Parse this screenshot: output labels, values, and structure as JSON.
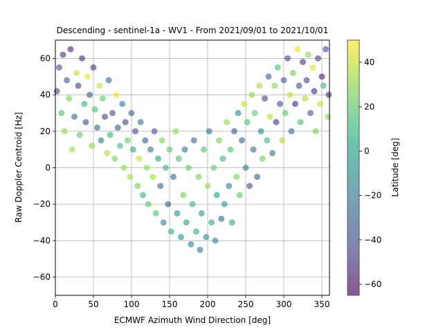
{
  "chart_data": {
    "type": "scatter",
    "title": "Descending - sentinel-1a - WV1 - From 2021/09/01 to 2021/10/01",
    "xlabel": "ECMWF Azimuth Wind Direction [deg]",
    "ylabel": "Raw Doppler Centroid [Hz]",
    "xlim": [
      0,
      360
    ],
    "ylim": [
      -70,
      70
    ],
    "xticks": [
      0,
      50,
      100,
      150,
      200,
      250,
      300,
      350
    ],
    "yticks": [
      -60,
      -40,
      -20,
      0,
      20,
      40,
      60
    ],
    "grid": true,
    "colormap": "viridis",
    "marker_alpha": 0.6,
    "colorbar": {
      "label": "Latitude [deg]",
      "range": [
        -65,
        50
      ],
      "ticks": [
        -60,
        -40,
        -20,
        0,
        20,
        40
      ]
    },
    "series": [
      {
        "description": "Raw Doppler centroid (Hz) vs ECMWF azimuth wind direction (deg), colored by latitude (deg); approximately V-shaped cloud, points are [x, y, latitude]",
        "points": [
          [
            2,
            42,
            -45
          ],
          [
            5,
            55,
            -40
          ],
          [
            8,
            30,
            15
          ],
          [
            10,
            62,
            -50
          ],
          [
            12,
            20,
            30
          ],
          [
            15,
            48,
            -35
          ],
          [
            18,
            38,
            25
          ],
          [
            20,
            65,
            -55
          ],
          [
            22,
            10,
            35
          ],
          [
            25,
            28,
            -30
          ],
          [
            28,
            52,
            40
          ],
          [
            30,
            45,
            -45
          ],
          [
            32,
            18,
            20
          ],
          [
            35,
            60,
            -50
          ],
          [
            38,
            35,
            10
          ],
          [
            40,
            25,
            -40
          ],
          [
            42,
            50,
            45
          ],
          [
            45,
            40,
            -35
          ],
          [
            48,
            12,
            30
          ],
          [
            50,
            55,
            -50
          ],
          [
            52,
            32,
            15
          ],
          [
            55,
            22,
            -25
          ],
          [
            58,
            45,
            40
          ],
          [
            60,
            15,
            -20
          ],
          [
            62,
            38,
            20
          ],
          [
            65,
            28,
            -45
          ],
          [
            68,
            8,
            35
          ],
          [
            70,
            48,
            -30
          ],
          [
            72,
            18,
            10
          ],
          [
            75,
            30,
            -40
          ],
          [
            78,
            5,
            25
          ],
          [
            80,
            40,
            45
          ],
          [
            82,
            22,
            -35
          ],
          [
            85,
            12,
            15
          ],
          [
            88,
            35,
            -20
          ],
          [
            90,
            0,
            30
          ],
          [
            92,
            25,
            -45
          ],
          [
            95,
            15,
            20
          ],
          [
            98,
            -5,
            35
          ],
          [
            100,
            30,
            -30
          ],
          [
            102,
            10,
            5
          ],
          [
            105,
            20,
            -40
          ],
          [
            108,
            -10,
            25
          ],
          [
            110,
            5,
            40
          ],
          [
            112,
            25,
            -25
          ],
          [
            115,
            -15,
            10
          ],
          [
            118,
            15,
            -35
          ],
          [
            120,
            0,
            30
          ],
          [
            122,
            -20,
            20
          ],
          [
            125,
            10,
            -20
          ],
          [
            128,
            -5,
            35
          ],
          [
            130,
            20,
            -40
          ],
          [
            132,
            -25,
            15
          ],
          [
            135,
            5,
            0
          ],
          [
            138,
            -10,
            -30
          ],
          [
            140,
            15,
            25
          ],
          [
            142,
            -30,
            -15
          ],
          [
            145,
            0,
            10
          ],
          [
            148,
            -20,
            -35
          ],
          [
            150,
            10,
            20
          ],
          [
            152,
            -35,
            5
          ],
          [
            155,
            -5,
            -25
          ],
          [
            158,
            20,
            30
          ],
          [
            160,
            -25,
            -10
          ],
          [
            162,
            5,
            15
          ],
          [
            165,
            -38,
            -5
          ],
          [
            168,
            -15,
            25
          ],
          [
            170,
            10,
            -20
          ],
          [
            172,
            -30,
            0
          ],
          [
            175,
            0,
            20
          ],
          [
            178,
            -42,
            -15
          ],
          [
            180,
            -20,
            10
          ],
          [
            182,
            15,
            -30
          ],
          [
            185,
            -35,
            5
          ],
          [
            188,
            -5,
            25
          ],
          [
            190,
            -45,
            -20
          ],
          [
            192,
            -25,
            0
          ],
          [
            195,
            10,
            15
          ],
          [
            198,
            -38,
            -10
          ],
          [
            200,
            -10,
            30
          ],
          [
            202,
            20,
            -25
          ],
          [
            205,
            -30,
            5
          ],
          [
            208,
            0,
            20
          ],
          [
            210,
            -40,
            -15
          ],
          [
            212,
            -15,
            0
          ],
          [
            215,
            15,
            25
          ],
          [
            218,
            -28,
            -30
          ],
          [
            220,
            5,
            10
          ],
          [
            222,
            -20,
            -5
          ],
          [
            225,
            25,
            30
          ],
          [
            228,
            -10,
            -20
          ],
          [
            230,
            10,
            15
          ],
          [
            232,
            -30,
            5
          ],
          [
            235,
            20,
            -35
          ],
          [
            238,
            -5,
            25
          ],
          [
            240,
            30,
            -10
          ],
          [
            242,
            -15,
            20
          ],
          [
            245,
            15,
            -30
          ],
          [
            248,
            35,
            40
          ],
          [
            250,
            0,
            -20
          ],
          [
            252,
            25,
            15
          ],
          [
            255,
            -10,
            -40
          ],
          [
            258,
            40,
            30
          ],
          [
            260,
            10,
            -25
          ],
          [
            262,
            30,
            20
          ],
          [
            265,
            -5,
            -35
          ],
          [
            268,
            45,
            35
          ],
          [
            270,
            20,
            -15
          ],
          [
            272,
            5,
            25
          ],
          [
            275,
            38,
            -45
          ],
          [
            278,
            15,
            10
          ],
          [
            280,
            50,
            -30
          ],
          [
            282,
            28,
            40
          ],
          [
            285,
            8,
            -20
          ],
          [
            288,
            45,
            30
          ],
          [
            290,
            25,
            -50
          ],
          [
            292,
            55,
            15
          ],
          [
            295,
            35,
            -40
          ],
          [
            298,
            15,
            35
          ],
          [
            300,
            48,
            -35
          ],
          [
            302,
            30,
            20
          ],
          [
            305,
            60,
            -45
          ],
          [
            308,
            40,
            40
          ],
          [
            310,
            20,
            -30
          ],
          [
            312,
            52,
            25
          ],
          [
            315,
            35,
            -55
          ],
          [
            318,
            65,
            45
          ],
          [
            320,
            45,
            -40
          ],
          [
            322,
            25,
            15
          ],
          [
            325,
            58,
            -50
          ],
          [
            328,
            38,
            35
          ],
          [
            330,
            48,
            -45
          ],
          [
            332,
            62,
            30
          ],
          [
            335,
            30,
            -35
          ],
          [
            338,
            55,
            45
          ],
          [
            340,
            42,
            -50
          ],
          [
            342,
            20,
            25
          ],
          [
            345,
            60,
            -45
          ],
          [
            348,
            35,
            40
          ],
          [
            350,
            50,
            -55
          ],
          [
            352,
            45,
            10
          ],
          [
            355,
            65,
            -40
          ],
          [
            358,
            28,
            30
          ],
          [
            359,
            40,
            -45
          ]
        ]
      }
    ]
  }
}
